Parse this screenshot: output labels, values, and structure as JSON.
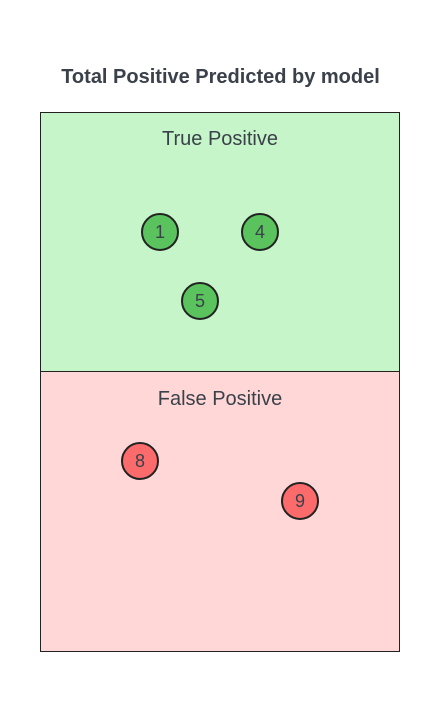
{
  "title": "Total Positive Predicted by model",
  "true_positive": {
    "label": "True Positive",
    "color": "#c6f5c9",
    "dot_color": "#5ac35e",
    "items": [
      "1",
      "4",
      "5"
    ]
  },
  "false_positive": {
    "label": "False Positive",
    "color": "#ffd7d7",
    "dot_color": "#fb6b6b",
    "items": [
      "8",
      "9"
    ]
  }
}
